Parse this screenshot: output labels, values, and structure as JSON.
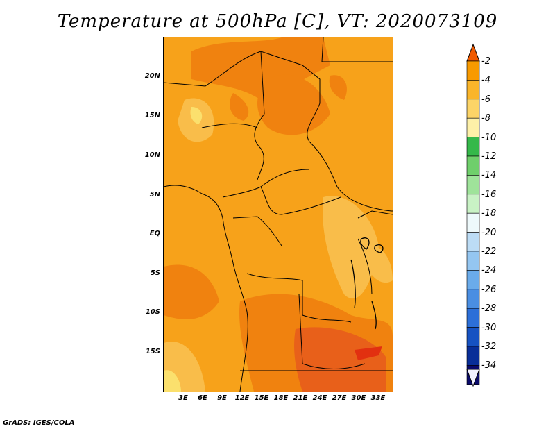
{
  "title": "Temperature at 500hPa [C], VT: 2020073109",
  "footer": "GrADS: IGES/COLA",
  "y_ticks": [
    "20N",
    "15N",
    "10N",
    "5N",
    "EQ",
    "5S",
    "10S",
    "15S"
  ],
  "x_ticks": [
    "3E",
    "6E",
    "9E",
    "12E",
    "15E",
    "18E",
    "21E",
    "24E",
    "27E",
    "30E",
    "33E"
  ],
  "colorbar": {
    "labels": [
      "-2",
      "-4",
      "-6",
      "-8",
      "-10",
      "-12",
      "-14",
      "-16",
      "-18",
      "-20",
      "-22",
      "-24",
      "-26",
      "-28",
      "-30",
      "-32",
      "-34"
    ],
    "colors": [
      "#f05a00",
      "#f89a00",
      "#fab52a",
      "#fcd467",
      "#fdf0a8",
      "#35b84a",
      "#6fcf6b",
      "#9fe39a",
      "#c9f2c5",
      "#eef9fb",
      "#bcdcf5",
      "#94c6f1",
      "#6aabea",
      "#4a8ee2",
      "#2c6fd8",
      "#1652c2",
      "#082e98",
      "#0a0a6b"
    ]
  },
  "colors": {
    "base_field": "#f7a21a",
    "warm_field": "#f0820f",
    "warmest_field": "#e8601a",
    "cool_field": "#f9bd4a",
    "coolest_field": "#fbe06d",
    "hot_spot": "#e23010"
  }
}
